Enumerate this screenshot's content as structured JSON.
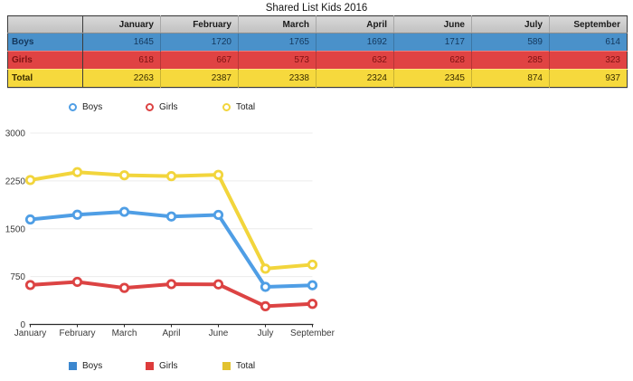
{
  "page": {
    "title": "Shared List Kids 2016"
  },
  "table": {
    "columns": [
      "January",
      "February",
      "March",
      "April",
      "June",
      "July",
      "September"
    ],
    "header_bg": "#c9c9c9",
    "rows": [
      {
        "label": "Boys",
        "values": [
          1645,
          1720,
          1765,
          1692,
          1717,
          589,
          614
        ],
        "row_color": "#4a91ca",
        "highlight": "#83bbe9",
        "text_color": "#14375c"
      },
      {
        "label": "Girls",
        "values": [
          618,
          667,
          573,
          632,
          628,
          285,
          323
        ],
        "row_color": "#e04343",
        "highlight": "#ef7d76",
        "text_color": "#7c1212"
      },
      {
        "label": "Total",
        "values": [
          2263,
          2387,
          2338,
          2324,
          2345,
          874,
          937
        ],
        "row_color": "#f6d93d",
        "highlight": "#fbe87d",
        "text_color": "#3a2d00"
      }
    ]
  },
  "chart_data": {
    "type": "line",
    "title": "",
    "categories": [
      "January",
      "February",
      "March",
      "April",
      "June",
      "July",
      "September"
    ],
    "series": [
      {
        "name": "Boys",
        "values": [
          1645,
          1720,
          1765,
          1692,
          1717,
          589,
          614
        ],
        "color": "#4f9ee5",
        "swatch_color": "#3c87cf"
      },
      {
        "name": "Girls",
        "values": [
          618,
          667,
          573,
          632,
          628,
          285,
          323
        ],
        "color": "#dc4343",
        "swatch_color": "#dd3b3b"
      },
      {
        "name": "Total",
        "values": [
          2263,
          2387,
          2338,
          2324,
          2345,
          874,
          937
        ],
        "color": "#f2d53c",
        "swatch_color": "#e2c22f"
      }
    ],
    "ylim": [
      0,
      3000
    ],
    "yticks": [
      0,
      750,
      1500,
      2250,
      3000
    ],
    "grid": true,
    "marker": "open-circle",
    "legend_position": "top-and-bottom",
    "grid_color": "#ececec",
    "axis_color": "#2a2a2a",
    "tick_label_color": "#3a3a3a"
  }
}
